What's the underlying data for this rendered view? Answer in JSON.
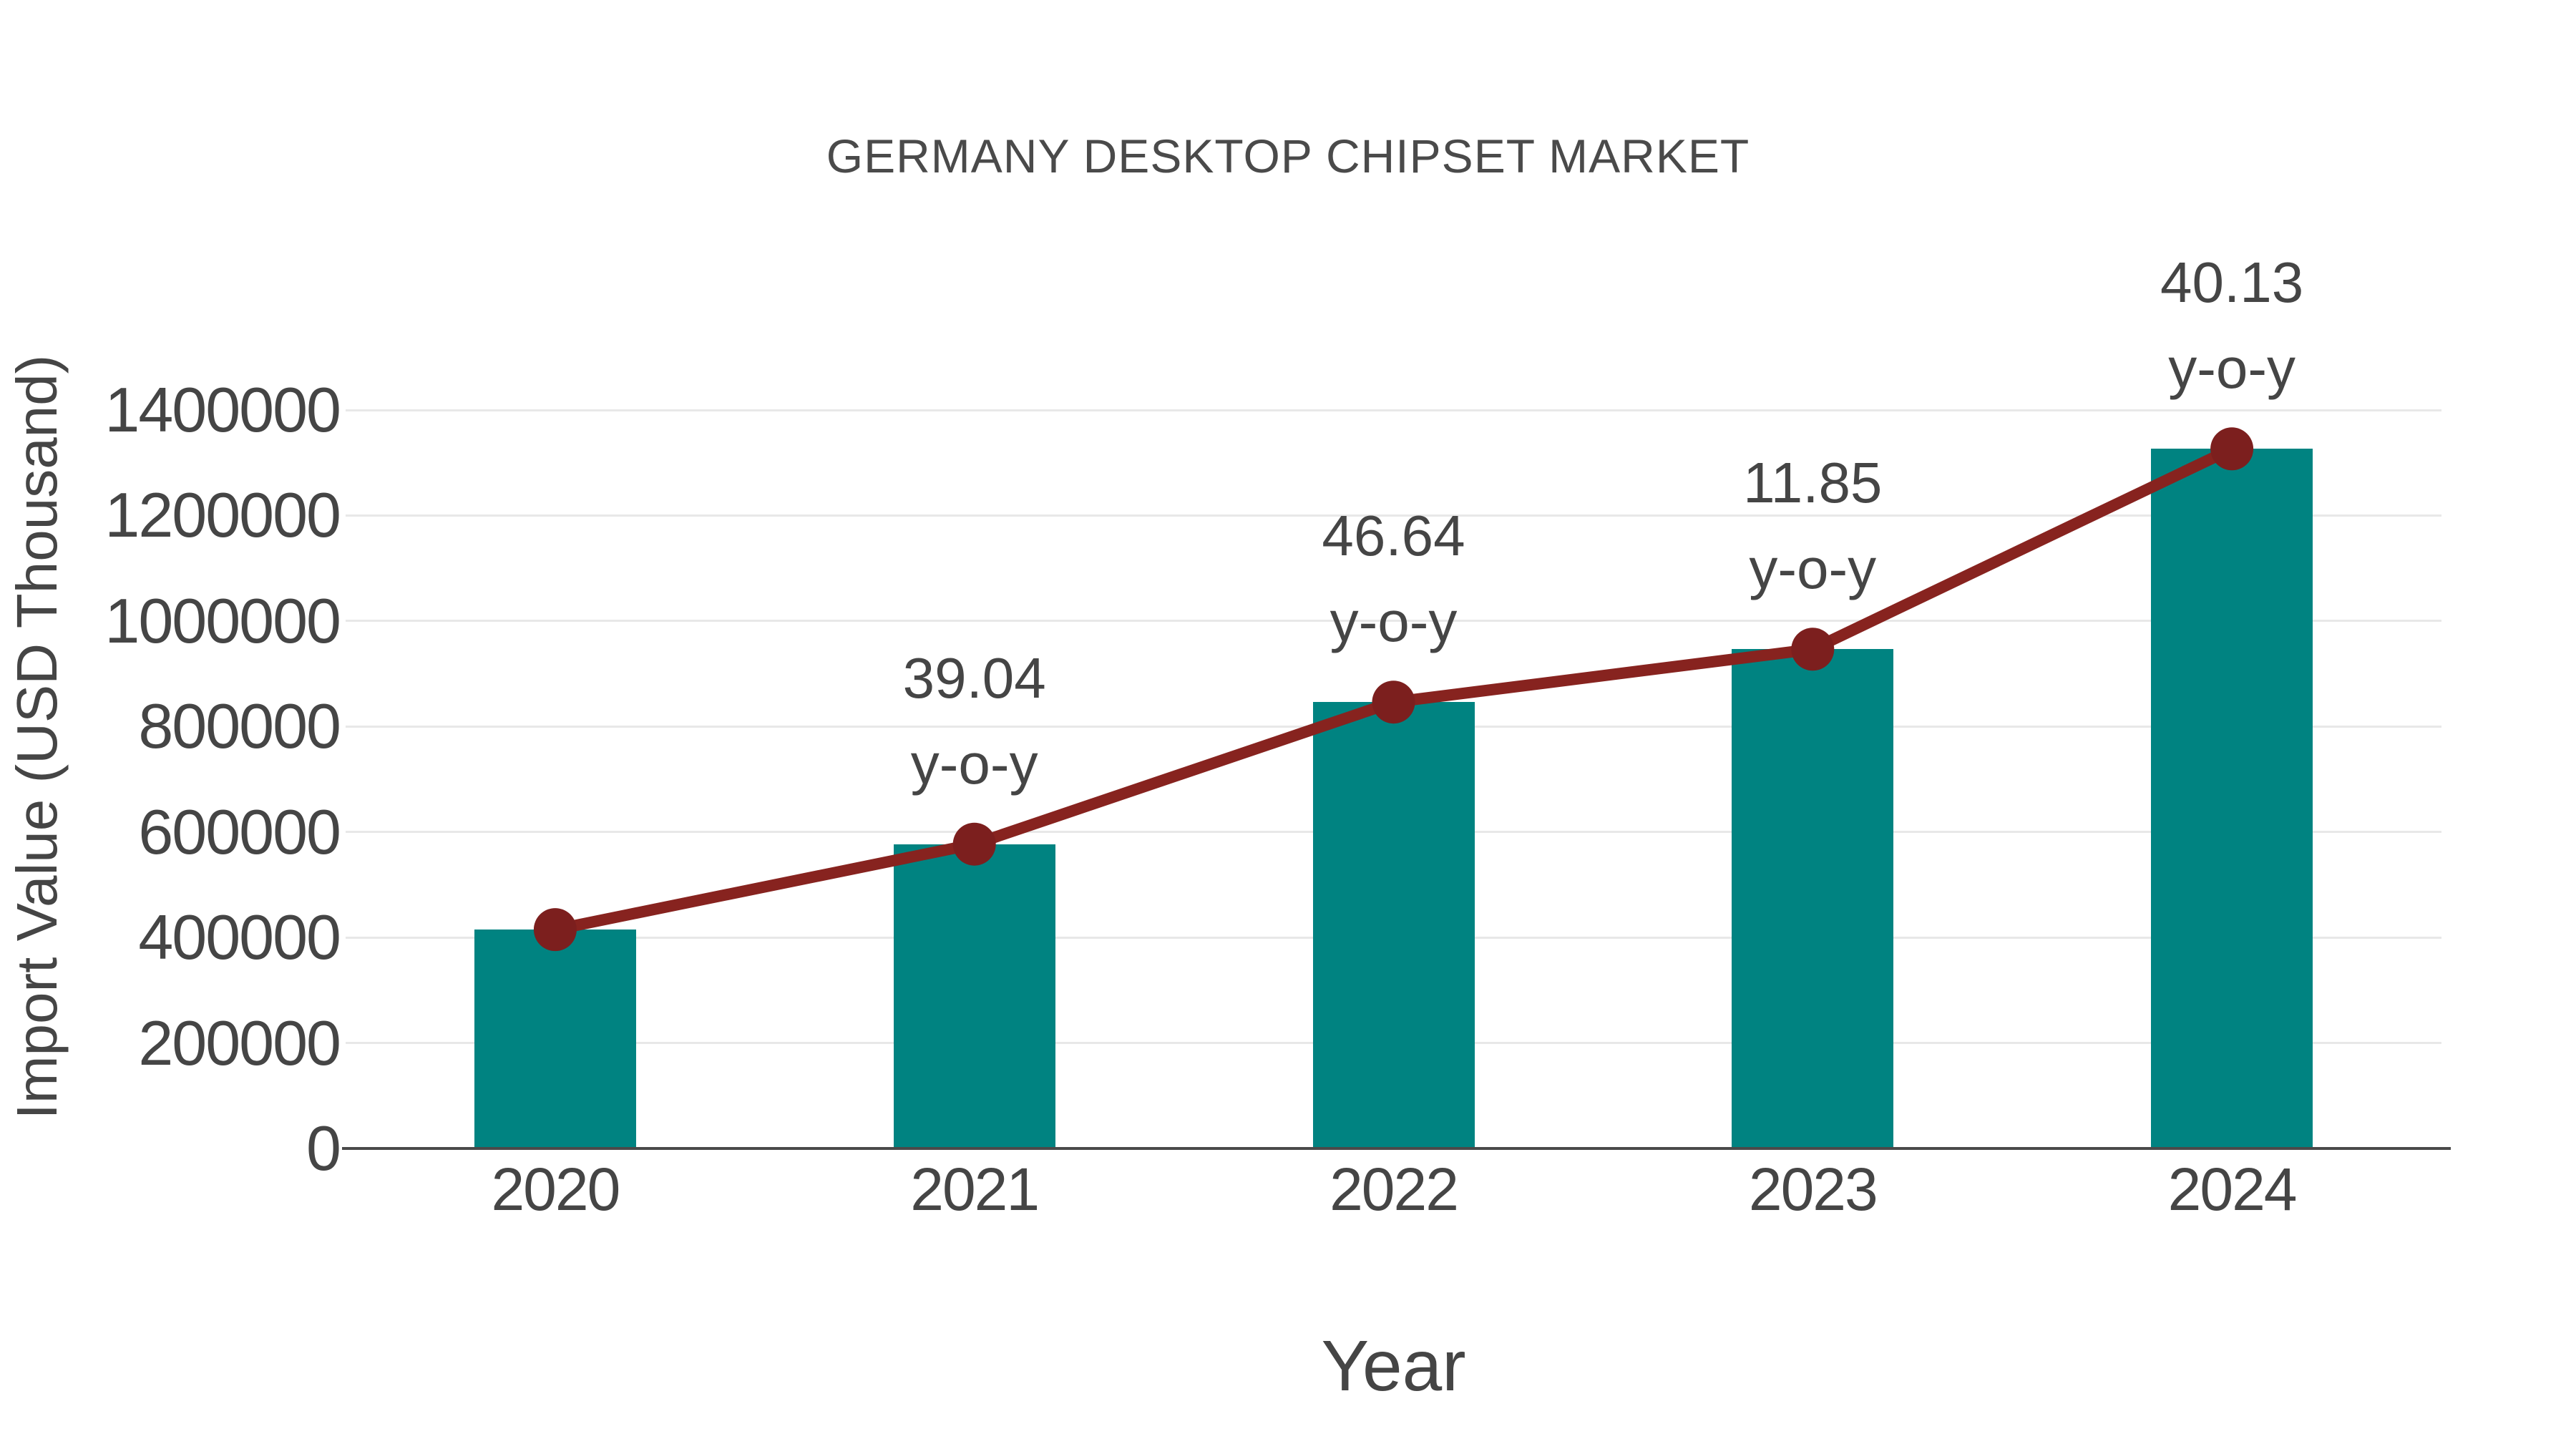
{
  "chart_data": {
    "type": "bar+line",
    "title": "GERMANY DESKTOP CHIPSET MARKET",
    "xlabel": "Year",
    "ylabel": "Import Value (USD Thousand)",
    "categories": [
      "2020",
      "2021",
      "2022",
      "2023",
      "2024"
    ],
    "series": [
      {
        "name": "Import Value (USD Thousand)",
        "type": "bar",
        "values": [
          415000,
          577000,
          846200,
          946500,
          1326300
        ]
      },
      {
        "name": "y-o-y growth (%)",
        "type": "line",
        "values": [
          null,
          39.04,
          46.64,
          11.85,
          40.13
        ],
        "plotted_on": "bar tops",
        "annotation_labels": [
          "39.04",
          "46.64",
          "11.85",
          "40.13"
        ],
        "annotation_suffix": "y-o-y"
      }
    ],
    "ylim": [
      0,
      1400000
    ],
    "y_ticks": [
      0,
      200000,
      400000,
      600000,
      800000,
      1000000,
      1200000,
      1400000
    ],
    "grid": "horizontal",
    "legend_position": "none"
  },
  "colors": {
    "bar_fill": "#008381",
    "line_stroke": "#87231f",
    "marker_fill": "#7c1f1e",
    "title_text": "#4a4a4a",
    "tick_text": "#454545",
    "axis_line": "#4a4a4a",
    "gridline": "#e8e8e8",
    "background": "#ffffff"
  }
}
